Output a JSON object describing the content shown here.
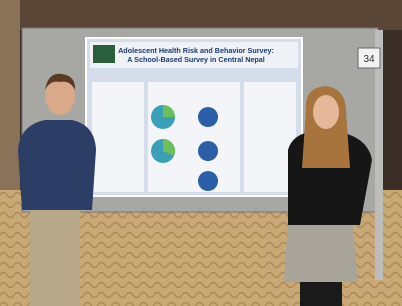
{
  "poster": {
    "title": "Adolescent Health Risk and Behavior Survey:",
    "subtitle": "A School-Based Survey in Central Nepal"
  },
  "board_number": "34"
}
